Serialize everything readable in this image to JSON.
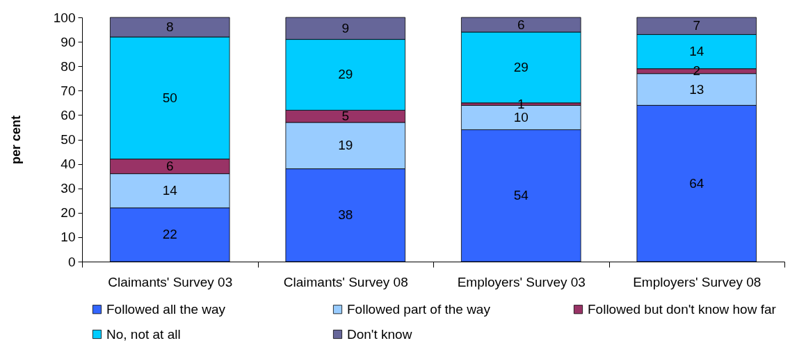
{
  "chart_data": {
    "type": "bar",
    "stacked": true,
    "ylabel": "per cent",
    "categories": [
      "Claimants' Survey 03",
      "Claimants' Survey 08",
      "Employers' Survey 03",
      "Employers' Survey 08"
    ],
    "series": [
      {
        "name": "Followed all the way",
        "color": "#3366ff",
        "values": [
          22,
          38,
          54,
          64
        ]
      },
      {
        "name": "Followed part of the way",
        "color": "#99ccff",
        "values": [
          14,
          19,
          10,
          13
        ]
      },
      {
        "name": "Followed but don't know how far",
        "color": "#993366",
        "values": [
          6,
          5,
          1,
          2
        ]
      },
      {
        "name": "No, not at all",
        "color": "#00ccff",
        "values": [
          50,
          29,
          29,
          14
        ]
      },
      {
        "name": "Don't know",
        "color": "#666699",
        "values": [
          8,
          9,
          6,
          7
        ]
      }
    ],
    "ylim": [
      0,
      100
    ],
    "yticks": [
      0,
      10,
      20,
      30,
      40,
      50,
      60,
      70,
      80,
      90,
      100
    ],
    "legend": "bottom",
    "data_labels": true
  }
}
